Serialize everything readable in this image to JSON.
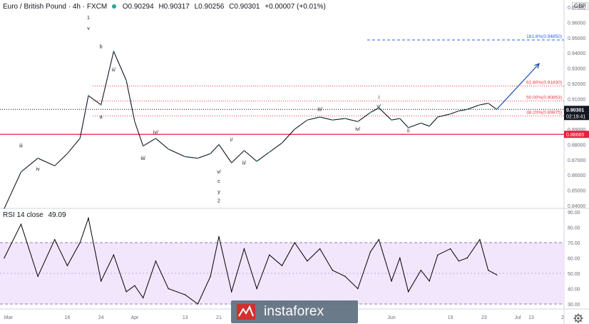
{
  "header": {
    "symbol": "Euro / British Pound · 4h · FXCM",
    "open": "O0.90294",
    "high": "H0.90317",
    "low": "L0.90256",
    "close": "C0.90301",
    "change": "+0.00007 (+0.01%)"
  },
  "currency_badge": "GBP",
  "rsi_header": {
    "label": "RSI 14 close",
    "value": "49.09"
  },
  "watermark": "instaforex",
  "colors": {
    "up": "#26a69a",
    "price_line": "#000000",
    "support": "#e91e3c",
    "fib": "#f23645",
    "target": "#2962ff",
    "arrow": "#1848a8",
    "rsi_line": "#000000",
    "rsi_band": "#f1e6fb",
    "rsi_band_border": "#9c70d0"
  },
  "chart_data": [
    {
      "type": "line",
      "name": "EUR/GBP price (approx. close path)",
      "x": [
        "Mar 1",
        "Mar 5",
        "Mar 9",
        "Mar 13",
        "Mar 16",
        "Mar 19",
        "Mar 21",
        "Mar 24",
        "Mar 27",
        "Mar 30",
        "Apr 1",
        "Apr 3",
        "Apr 6",
        "Apr 9",
        "Apr 13",
        "Apr 16",
        "Apr 19",
        "Apr 21",
        "Apr 24",
        "Apr 27",
        "Apr 30",
        "May 3",
        "May 6",
        "May 9",
        "May 12",
        "May 15",
        "May 18",
        "May 21",
        "May 24",
        "May 27",
        "May 29",
        "Jun 1",
        "Jun 3",
        "Jun 5",
        "Jun 8",
        "Jun 10",
        "Jun 12",
        "Jun 15",
        "Jun 17",
        "Jun 19",
        "Jun 22",
        "Jun 24",
        "Jun 26"
      ],
      "y": [
        0.838,
        0.862,
        0.871,
        0.866,
        0.874,
        0.884,
        0.912,
        0.906,
        0.941,
        0.922,
        0.895,
        0.879,
        0.884,
        0.877,
        0.872,
        0.871,
        0.874,
        0.88,
        0.868,
        0.876,
        0.869,
        0.875,
        0.881,
        0.89,
        0.896,
        0.898,
        0.896,
        0.897,
        0.895,
        0.901,
        0.904,
        0.896,
        0.897,
        0.891,
        0.894,
        0.892,
        0.898,
        0.9,
        0.902,
        0.903,
        0.906,
        0.907,
        0.903
      ],
      "ylim": [
        0.84,
        0.97
      ],
      "ytick_labels": [
        "0.84000",
        "0.85000",
        "0.86000",
        "0.87000",
        "0.88000",
        "0.89000",
        "0.90000",
        "0.91000",
        "0.92000",
        "0.93000",
        "0.94000",
        "0.95000",
        "0.96000",
        "0.97000"
      ],
      "xtick_labels": [
        "Mar",
        "16",
        "24",
        "Apr",
        "13",
        "21",
        "Jun",
        "15",
        "23",
        "Jul",
        "13",
        "2"
      ],
      "current_price": {
        "label": "0.90301",
        "countdown": "02:19:41"
      },
      "support": {
        "label": "0.88665",
        "value": 0.88665
      },
      "fib_levels": [
        {
          "label": "161.8%(0.94850)",
          "value": 0.9485,
          "style": "target"
        },
        {
          "label": "61.80%(0.91830)",
          "value": 0.9183
        },
        {
          "label": "50.00%(0.90853)",
          "value": 0.90853
        },
        {
          "label": "38.20%(0.89875)",
          "value": 0.89875
        }
      ],
      "wave_labels": [
        {
          "text": "1",
          "x": "Mar 21",
          "y": 0.962
        },
        {
          "text": "v",
          "x": "Mar 21",
          "y": 0.955
        },
        {
          "text": "b",
          "x": "Mar 24",
          "y": 0.943
        },
        {
          "text": "ii/",
          "x": "Mar 27",
          "y": 0.928
        },
        {
          "text": "a",
          "x": "Mar 24",
          "y": 0.897
        },
        {
          "text": "iii",
          "x": "Mar 5",
          "y": 0.878
        },
        {
          "text": "iv",
          "x": "Mar 9",
          "y": 0.863
        },
        {
          "text": "iv/",
          "x": "Apr 6",
          "y": 0.887
        },
        {
          "text": "iii/",
          "x": "Apr 3",
          "y": 0.87
        },
        {
          "text": "i/",
          "x": "Apr 24",
          "y": 0.882
        },
        {
          "text": "ii/",
          "x": "Apr 27",
          "y": 0.867
        },
        {
          "text": "v/",
          "x": "Apr 21",
          "y": 0.861
        },
        {
          "text": "c",
          "x": "Apr 21",
          "y": 0.855
        },
        {
          "text": "y",
          "x": "Apr 21",
          "y": 0.848
        },
        {
          "text": "2",
          "x": "Apr 21",
          "y": 0.842
        },
        {
          "text": "iii/",
          "x": "May 15",
          "y": 0.902
        },
        {
          "text": "iv/",
          "x": "May 24",
          "y": 0.889
        },
        {
          "text": "i",
          "x": "May 29",
          "y": 0.91
        },
        {
          "text": "v/",
          "x": "May 29",
          "y": 0.904
        },
        {
          "text": "ii",
          "x": "Jun 5",
          "y": 0.888
        }
      ],
      "projection": {
        "from": {
          "x": "Jun 26",
          "y": 0.903
        },
        "to": {
          "x": "Jul 1",
          "y": 0.933
        }
      }
    },
    {
      "type": "line",
      "name": "RSI 14 close",
      "x": [
        "Mar 1",
        "Mar 5",
        "Mar 9",
        "Mar 13",
        "Mar 16",
        "Mar 19",
        "Mar 21",
        "Mar 24",
        "Mar 27",
        "Mar 30",
        "Apr 1",
        "Apr 3",
        "Apr 6",
        "Apr 9",
        "Apr 13",
        "Apr 16",
        "Apr 19",
        "Apr 21",
        "Apr 24",
        "Apr 27",
        "Apr 30",
        "May 3",
        "May 6",
        "May 9",
        "May 12",
        "May 15",
        "May 18",
        "May 21",
        "May 24",
        "May 27",
        "May 29",
        "Jun 1",
        "Jun 3",
        "Jun 5",
        "Jun 8",
        "Jun 10",
        "Jun 12",
        "Jun 15",
        "Jun 17",
        "Jun 19",
        "Jun 22",
        "Jun 24",
        "Jun 26"
      ],
      "y": [
        60,
        82,
        48,
        72,
        55,
        70,
        86,
        45,
        62,
        38,
        42,
        34,
        58,
        40,
        36,
        30,
        48,
        74,
        38,
        66,
        40,
        62,
        55,
        70,
        58,
        66,
        52,
        48,
        40,
        64,
        72,
        45,
        60,
        38,
        52,
        45,
        62,
        66,
        58,
        60,
        72,
        52,
        49
      ],
      "ylim": [
        30,
        90
      ],
      "ytick_labels": [
        "30.00",
        "40.00",
        "50.00",
        "60.00",
        "70.00",
        "80.00",
        "90.00"
      ],
      "band": [
        30,
        70
      ]
    }
  ]
}
